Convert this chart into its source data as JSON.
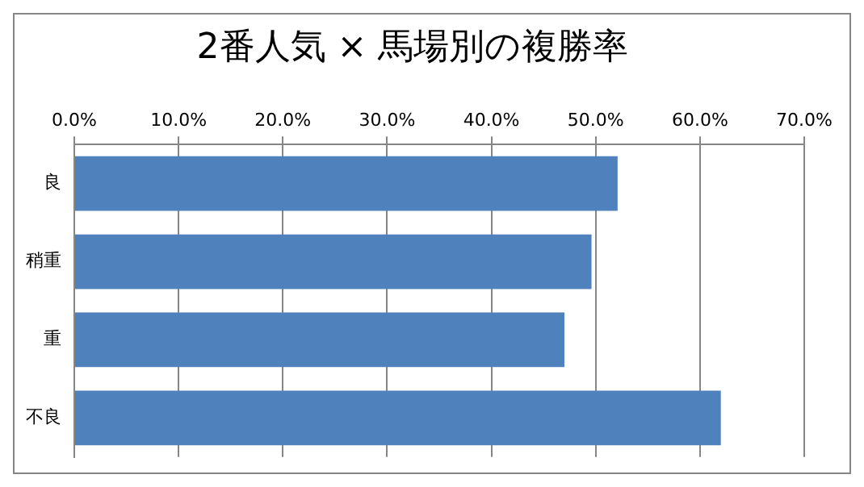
{
  "chart_data": {
    "type": "bar",
    "orientation": "horizontal",
    "title": "2番人気 × 馬場別の複勝率",
    "categories": [
      "良",
      "稍重",
      "重",
      "不良"
    ],
    "values": [
      52.1,
      49.6,
      47.0,
      62.0
    ],
    "color": "#4f81bd",
    "xlim": [
      0,
      70
    ],
    "xticks": [
      {
        "value": 0,
        "label": "0.0%"
      },
      {
        "value": 10,
        "label": "10.0%"
      },
      {
        "value": 20,
        "label": "20.0%"
      },
      {
        "value": 30,
        "label": "30.0%"
      },
      {
        "value": 40,
        "label": "40.0%"
      },
      {
        "value": 50,
        "label": "50.0%"
      },
      {
        "value": 60,
        "label": "60.0%"
      },
      {
        "value": 70,
        "label": "70.0%"
      }
    ],
    "grid": "x",
    "legend": false
  }
}
